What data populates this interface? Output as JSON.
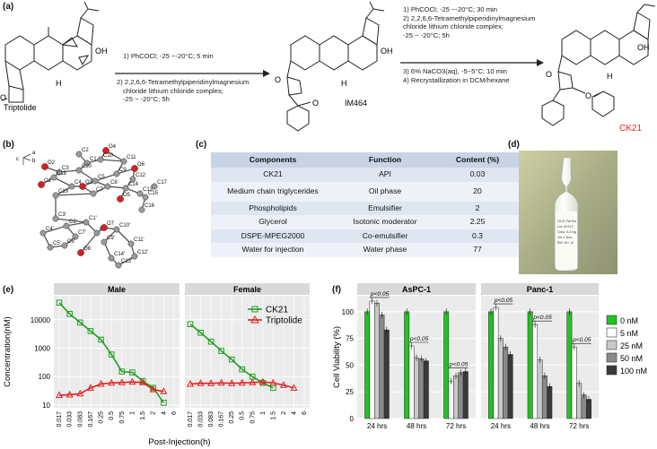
{
  "panel_labels": {
    "a": "(a)",
    "b": "(b)",
    "c": "(c)",
    "d": "(d)",
    "e": "(e)",
    "f": "(f)"
  },
  "scheme": {
    "step1": [
      "1) PhCOCl; -25 ~-20°C; 5 min",
      "2) 2,2,6,6-Tetramethylpiperidinylmagnesium",
      "chloride lithium chloride complex;",
      "-25 ~ -20°C; 5h"
    ],
    "step2": [
      "1) PhCOCl; -25 ~-20°C; 30 min",
      "2) 2,2,6,6-Tetramethylpiperidinylmagnesium",
      "chloride lithium chloride complex;",
      "-25 ~ -20°C; 5h",
      "3) 6% NaCO3(aq),  -5~5°C; 10 min",
      "4) Recrystallization in DCM/hexane"
    ],
    "molecules": {
      "m1": "Triptolide",
      "m2": "IM464",
      "m3": "CK21"
    },
    "atoms": {
      "oh": "OH",
      "h": "H",
      "o": "O"
    },
    "colors": {
      "ck21": "#e8252b"
    }
  },
  "crystal": {
    "axes": [
      "a",
      "b",
      "c"
    ],
    "atoms": [
      "O4",
      "C2",
      "C1",
      "C10",
      "C11",
      "O2",
      "C3",
      "C20",
      "C9",
      "O6",
      "C12",
      "C18",
      "C5",
      "C8",
      "C14",
      "C17",
      "O1",
      "C4",
      "O3",
      "C7",
      "C19",
      "O5",
      "C13",
      "C15",
      "C16",
      "C3'",
      "C1'",
      "C2'",
      "C4'",
      "C7'",
      "C8'",
      "O7",
      "C10'",
      "C9'",
      "C11'",
      "C5'",
      "C6'",
      "O8",
      "C14'",
      "C13'",
      "C12'"
    ]
  },
  "table": {
    "headers": [
      "Components",
      "Function",
      "Content (%)"
    ],
    "rows": [
      [
        "CK21",
        "API",
        "0.03"
      ],
      [
        "Medium chain triglycerides",
        "Oil phase",
        "20"
      ],
      [
        "Phospholipids",
        "Emulsifier",
        "2"
      ],
      [
        "Glycerol",
        "Isotonic moderator",
        "2.25"
      ],
      [
        "DSPE-MPEG2000",
        "Co-emulsifier",
        "0.3"
      ],
      [
        "Water for injection",
        "Water phase",
        "77"
      ]
    ]
  },
  "vial_label": [
    "CK21 Fat Em",
    "Lot: CK210",
    "Conc: 0.3 mg",
    "Vol: 1.5mL",
    "Ref: 18 / 12"
  ],
  "chart_e": {
    "type": "line",
    "facets": [
      "Male",
      "Female"
    ],
    "ylabel": "Concentration(nM)",
    "xlabel": "Post-Injection(h)",
    "x_ticks": [
      "0.017",
      "0.033",
      "0.083",
      "0.167",
      "0.25",
      "0.5",
      "0.75",
      "1",
      "1.5",
      "2",
      "4",
      "6"
    ],
    "y_ticks": [
      "10",
      "100",
      "1000",
      "10000"
    ],
    "legend": [
      {
        "name": "CK21",
        "color": "#20a020",
        "marker": "square"
      },
      {
        "name": "Triptolide",
        "color": "#e02020",
        "marker": "triangle"
      }
    ],
    "series": {
      "Male": {
        "CK21": [
          40000,
          16000,
          8000,
          4000,
          2000,
          600,
          150,
          140,
          70,
          40,
          12,
          null
        ],
        "Triptolide": [
          22,
          23,
          25,
          40,
          55,
          60,
          62,
          65,
          62,
          35,
          30,
          null
        ]
      },
      "Female": {
        "CK21": [
          7000,
          3500,
          1700,
          800,
          400,
          180,
          100,
          60,
          40,
          null,
          null,
          null
        ],
        "Triptolide": [
          55,
          58,
          58,
          60,
          58,
          60,
          62,
          65,
          60,
          50,
          40,
          null
        ]
      }
    }
  },
  "chart_f": {
    "type": "bar",
    "facets": [
      "AsPC-1",
      "Panc-1"
    ],
    "ylabel": "Cell Viability (%)",
    "categories": [
      "24 hrs",
      "48 hrs",
      "72 hrs"
    ],
    "y_ticks": [
      "0",
      "25",
      "50",
      "75",
      "100"
    ],
    "ylim": [
      0,
      115
    ],
    "pvalue": "p<0.05",
    "legend": [
      {
        "name": "0 nM",
        "color": "#22c322"
      },
      {
        "name": "5 nM",
        "color": "#ffffff"
      },
      {
        "name": "25 nM",
        "color": "#c9c9c9"
      },
      {
        "name": "50 nM",
        "color": "#8a8a8a"
      },
      {
        "name": "100 nM",
        "color": "#3a3a3a"
      }
    ],
    "values": {
      "AsPC-1": [
        [
          100,
          110,
          108,
          97,
          83
        ],
        [
          100,
          68,
          57,
          56,
          54
        ],
        [
          100,
          35,
          40,
          43,
          44
        ]
      ],
      "Panc-1": [
        [
          100,
          104,
          75,
          67,
          60
        ],
        [
          100,
          88,
          55,
          40,
          30
        ],
        [
          100,
          67,
          33,
          22,
          18
        ]
      ]
    }
  }
}
